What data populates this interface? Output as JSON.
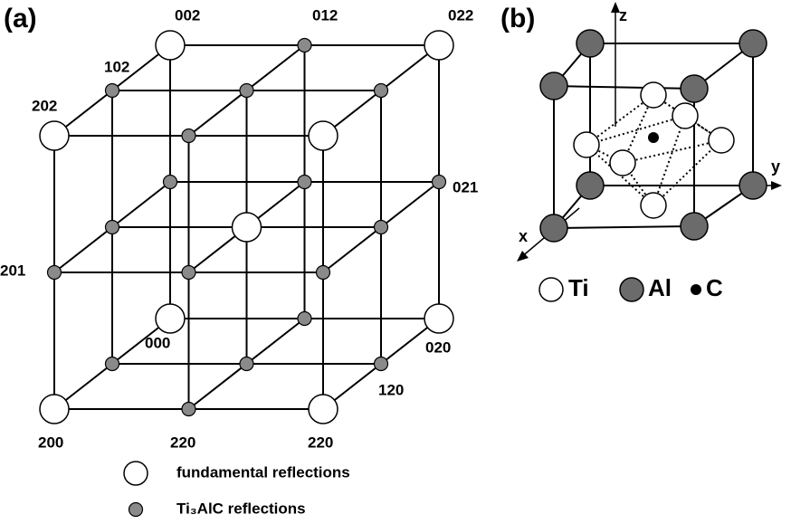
{
  "panel_a": {
    "title": "(a)",
    "labels": [
      "002",
      "012",
      "022",
      "102",
      "202",
      "021",
      "201",
      "000",
      "020",
      "120",
      "200",
      "220",
      "220"
    ],
    "legend": [
      "fundamental reflections",
      "Ti₃AlC reflections"
    ]
  },
  "panel_b": {
    "title": "(b)",
    "axes": [
      "z",
      "y",
      "x"
    ],
    "legend": [
      "Ti",
      "Al",
      "C"
    ]
  }
}
